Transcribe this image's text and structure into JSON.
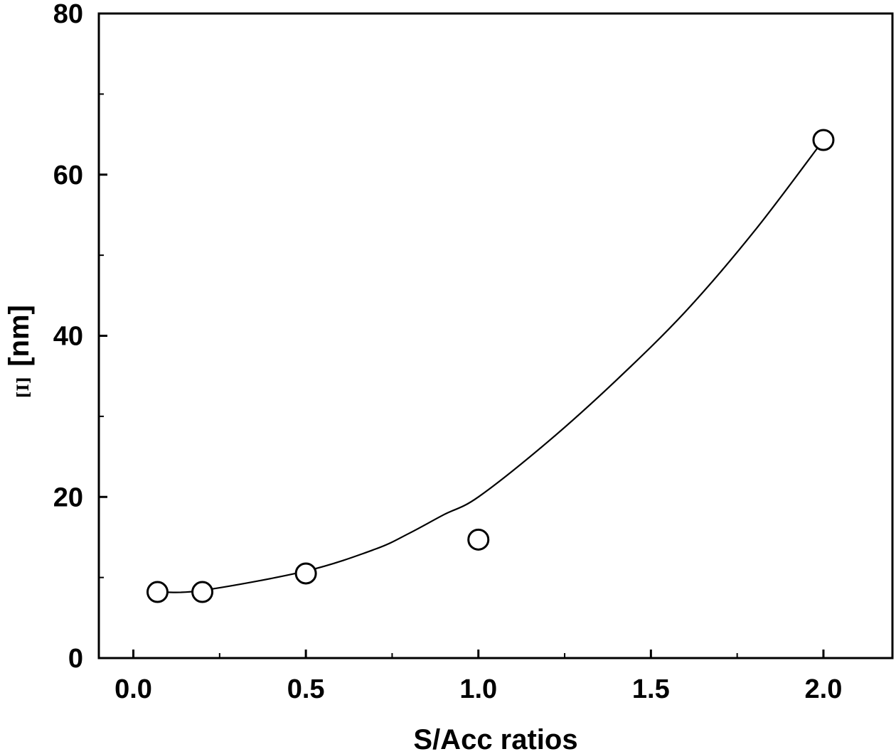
{
  "chart_data": {
    "type": "scatter",
    "title": "",
    "xlabel": "S/Acc ratios",
    "ylabel": {
      "symbol": "[Ι]",
      "unit": "[nm]"
    },
    "xlim": [
      -0.1,
      2.2
    ],
    "ylim": [
      0,
      80
    ],
    "xticks": [
      0.0,
      0.5,
      1.0,
      1.5,
      2.0
    ],
    "xtick_labels": [
      "0.0",
      "0.5",
      "1.0",
      "1.5",
      "2.0"
    ],
    "xminor_ticks": [
      0.25,
      0.75,
      1.25,
      1.75
    ],
    "yticks": [
      0,
      20,
      40,
      60,
      80
    ],
    "ytick_labels": [
      "0",
      "20",
      "40",
      "60",
      "80"
    ],
    "yminor_ticks": [
      10,
      30,
      50,
      70
    ],
    "grid": false,
    "legend": "none",
    "series": [
      {
        "marker": "open-circle",
        "x": [
          0.07,
          0.2,
          0.5,
          1.0,
          2.0
        ],
        "y": [
          8.2,
          8.2,
          10.5,
          14.7,
          64.3
        ]
      }
    ],
    "fit_curve": {
      "x": [
        0.07,
        0.2,
        0.5,
        0.7,
        0.8,
        0.9,
        1.0,
        1.2,
        1.4,
        1.6,
        1.8,
        2.0
      ],
      "y": [
        8.2,
        8.4,
        10.8,
        13.5,
        15.5,
        17.8,
        20.0,
        26.8,
        34.5,
        43.0,
        53.0,
        64.3
      ]
    }
  }
}
